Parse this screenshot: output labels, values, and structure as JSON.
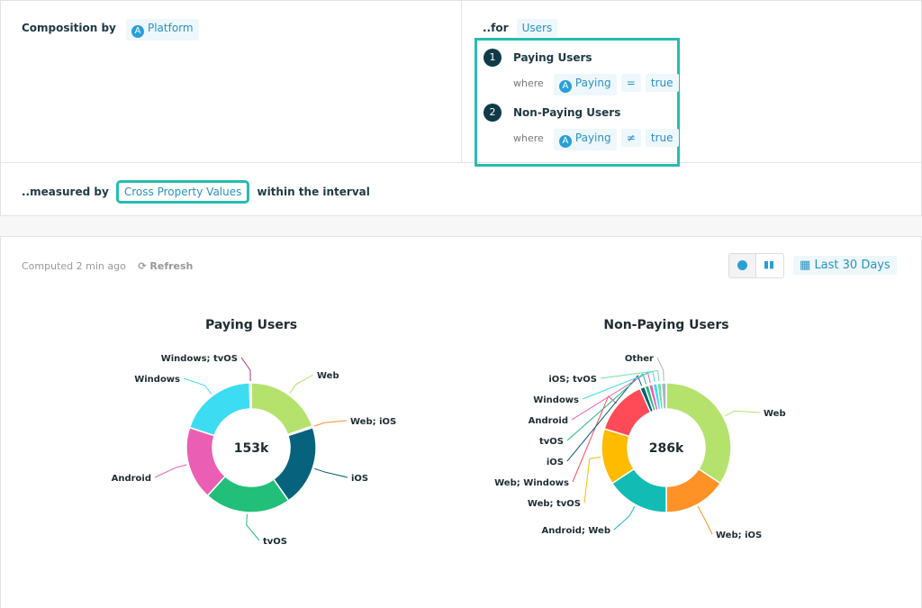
{
  "query": {
    "composition_label": "Composition by",
    "composition_property": "Platform",
    "for_label": "..for",
    "for_entity": "Users",
    "segments": [
      {
        "num": "1",
        "name": "Paying Users",
        "where": "where",
        "property": "Paying",
        "op": "=",
        "value": "true"
      },
      {
        "num": "2",
        "name": "Non-Paying Users",
        "where": "where",
        "property": "Paying",
        "op": "≠",
        "value": "true"
      }
    ],
    "measured_label": "..measured by",
    "measure": "Cross Property Values",
    "interval_label": "within the interval"
  },
  "toolbar": {
    "computed": "Computed 2 min ago",
    "refresh": "Refresh",
    "date_range": "Last 30 Days",
    "active_view": "pie"
  },
  "chart_data": [
    {
      "type": "pie",
      "title": "Paying Users",
      "center_label": "153k",
      "categories": [
        "Web",
        "Web; iOS",
        "iOS",
        "tvOS",
        "Android",
        "Windows",
        "Windows; tvOS"
      ],
      "values": [
        30,
        0.6,
        31,
        33,
        28,
        30,
        0.6
      ],
      "colors": [
        "#b5e26d",
        "#ff9227",
        "#07637d",
        "#22bf7a",
        "#ea5fb3",
        "#3cdcf2",
        "#9c3b86"
      ]
    },
    {
      "type": "pie",
      "title": "Non-Paying Users",
      "center_label": "286k",
      "categories": [
        "Web",
        "Web; iOS",
        "Android; Web",
        "Web; tvOS",
        "Web; Windows",
        "iOS",
        "tvOS",
        "Android",
        "Windows",
        "iOS; tvOS",
        "Other"
      ],
      "values": [
        98,
        45,
        45,
        40,
        39,
        3.5,
        3,
        3,
        3,
        3,
        3.5
      ],
      "colors": [
        "#b5e26d",
        "#ff9227",
        "#12bbb3",
        "#ffbb00",
        "#ff4b57",
        "#0b5c6e",
        "#22bf7a",
        "#ea5fb3",
        "#3cdcf2",
        "#6fe0a9",
        "#aab7c0"
      ]
    }
  ]
}
